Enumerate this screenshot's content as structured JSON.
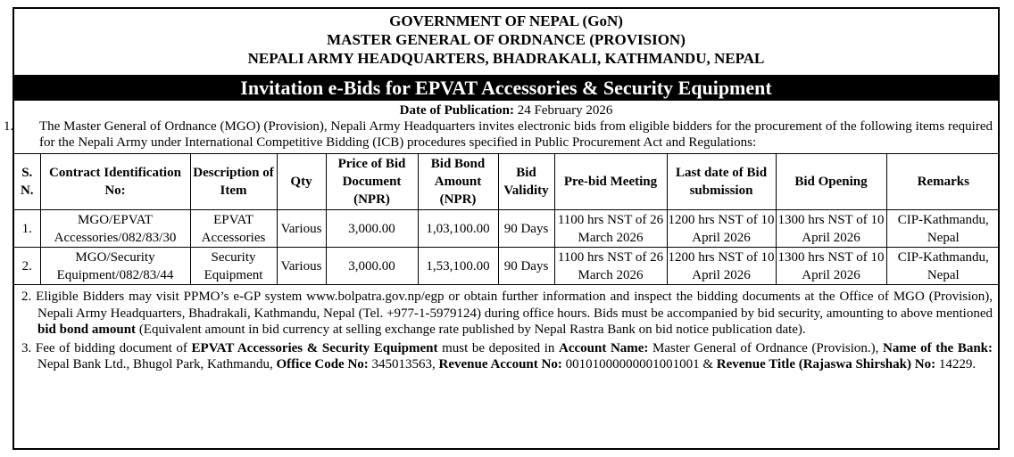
{
  "header": {
    "line1": "GOVERNMENT OF NEPAL (GoN)",
    "line2": "MASTER GENERAL OF ORDNANCE (PROVISION)",
    "line3": "NEPALI ARMY HEADQUARTERS, BHADRAKALI, KATHMANDU, NEPAL"
  },
  "banner": "Invitation e-Bids for EPVAT Accessories & Security Equipment",
  "publication": {
    "label": "Date of Publication:",
    "date": "24 February 2026"
  },
  "para1": {
    "num": "1.",
    "text": "The Master General of Ordnance (MGO) (Provision), Nepali Army Headquarters invites electronic bids from eligible bidders for the procurement of the following items required for the Nepali Army under International Competitive Bidding (ICB) procedures specified in Public Procurement Act and Regulations:"
  },
  "table": {
    "headers": {
      "sn": "S. N.",
      "contract": "Contract Identification No:",
      "desc": "Description of Item",
      "qty": "Qty",
      "price": "Price of Bid Document (NPR)",
      "bond": "Bid Bond Amount (NPR)",
      "validity": "Bid Validity",
      "prebid": "Pre-bid Meeting",
      "lastdate": "Last date of Bid submission",
      "opening": "Bid  Opening",
      "remarks": "Remarks"
    },
    "rows": [
      {
        "sn": "1.",
        "contract": "MGO/EPVAT Accessories/082/83/30",
        "desc": "EPVAT Accessories",
        "qty": "Various",
        "price": "3,000.00",
        "bond": "1,03,100.00",
        "validity": "90 Days",
        "prebid": "1100 hrs NST of 26 March 2026",
        "lastdate": "1200 hrs NST of 10 April 2026",
        "opening": "1300 hrs NST of 10 April 2026",
        "remarks": "CIP-Kathmandu, Nepal"
      },
      {
        "sn": "2.",
        "contract": "MGO/Security Equipment/082/83/44",
        "desc": "Security Equipment",
        "qty": "Various",
        "price": "3,000.00",
        "bond": "1,53,100.00",
        "validity": "90 Days",
        "prebid": "1100 hrs NST of 26 March 2026",
        "lastdate": "1200 hrs NST of 10 April 2026",
        "opening": "1300 hrs NST of 10 April 2026",
        "remarks": "CIP-Kathmandu, Nepal"
      }
    ]
  },
  "note2": {
    "num": "2.",
    "pre": "Eligible Bidders may visit PPMO’s e-GP system www.bolpatra.gov.np/egp or obtain further information and inspect the bidding documents at the Office of MGO (Provision), Nepali Army Headquarters, Bhadrakali, Kathmandu, Nepal (Tel. +977-1-5979124) during office hours. Bids must be accompanied by bid security, amounting to above mentioned ",
    "bold": "bid bond amount",
    "post": " (Equivalent amount in bid currency at selling exchange rate published by Nepal Rastra Bank on bid notice publication date)."
  },
  "note3": {
    "num": "3.",
    "t1": "Fee of bidding document of ",
    "b1": "EPVAT Accessories & Security Equipment",
    "t2": " must be deposited in ",
    "b2": "Account Name:",
    "t3": " Master General of Ordnance (Provision.), ",
    "b3": "Name of the Bank:",
    "t4": " Nepal Bank Ltd., Bhugol Park, Kathmandu, ",
    "b4": "Office Code No:",
    "t5": " 345013563, ",
    "b5": "Revenue Account No:",
    "t6": " 00101000000001001001 & ",
    "b6": "Revenue Title (Rajaswa Shirshak) No:",
    "t7": " 14229."
  }
}
